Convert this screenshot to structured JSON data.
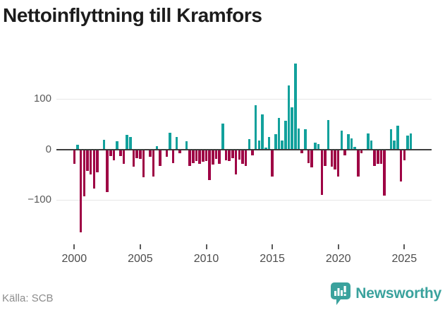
{
  "header": {
    "title": "Nettoinflyttning till Kramfors"
  },
  "footer": {
    "source": "Källa: SCB",
    "brand": "Newsworthy"
  },
  "colors": {
    "positive_bar": "#12a19c",
    "negative_bar": "#9e0044",
    "brand_teal": "#3aa29d",
    "axis_line": "#3d3d3d",
    "grid": "#e7e7e7"
  },
  "chart_data": {
    "type": "bar",
    "title": "Nettoinflyttning till Kramfors",
    "frequency": "quarterly",
    "start": "2000 Q1",
    "end": "2025 Q3",
    "xlabel": "",
    "ylabel": "",
    "grid": "horizontal",
    "legend": "none",
    "ylim": [
      -175,
      180
    ],
    "y_tick_labels": [
      "100",
      "0",
      "−100"
    ],
    "y_tick_values": [
      100,
      0,
      -100
    ],
    "x_tick_labels": [
      "2000",
      "2005",
      "2010",
      "2015",
      "2020",
      "2025"
    ],
    "x_tick_quarter_index": [
      0,
      20,
      40,
      60,
      80,
      100
    ],
    "values": [
      -28,
      9,
      -163,
      -92,
      -42,
      -48,
      -77,
      -44,
      0,
      19,
      -83,
      -12,
      -21,
      16,
      -12,
      -28,
      29,
      25,
      -33,
      -16,
      -18,
      -54,
      0,
      -13,
      -53,
      6,
      -32,
      0,
      -14,
      33,
      -26,
      24,
      -6,
      0,
      16,
      -32,
      -26,
      -22,
      -27,
      -23,
      -22,
      -60,
      -29,
      -18,
      -28,
      51,
      -21,
      -22,
      -16,
      -49,
      -19,
      -28,
      -31,
      20,
      -10,
      88,
      17,
      69,
      4,
      24,
      -52,
      30,
      63,
      17,
      57,
      127,
      84,
      170,
      41,
      -7,
      40,
      -26,
      -35,
      14,
      11,
      -89,
      -31,
      58,
      -33,
      -39,
      -52,
      37,
      -11,
      30,
      22,
      5,
      -53,
      -7,
      0,
      32,
      17,
      -32,
      -27,
      -28,
      -90,
      0,
      40,
      17,
      47,
      -63,
      -21,
      27,
      31
    ]
  }
}
